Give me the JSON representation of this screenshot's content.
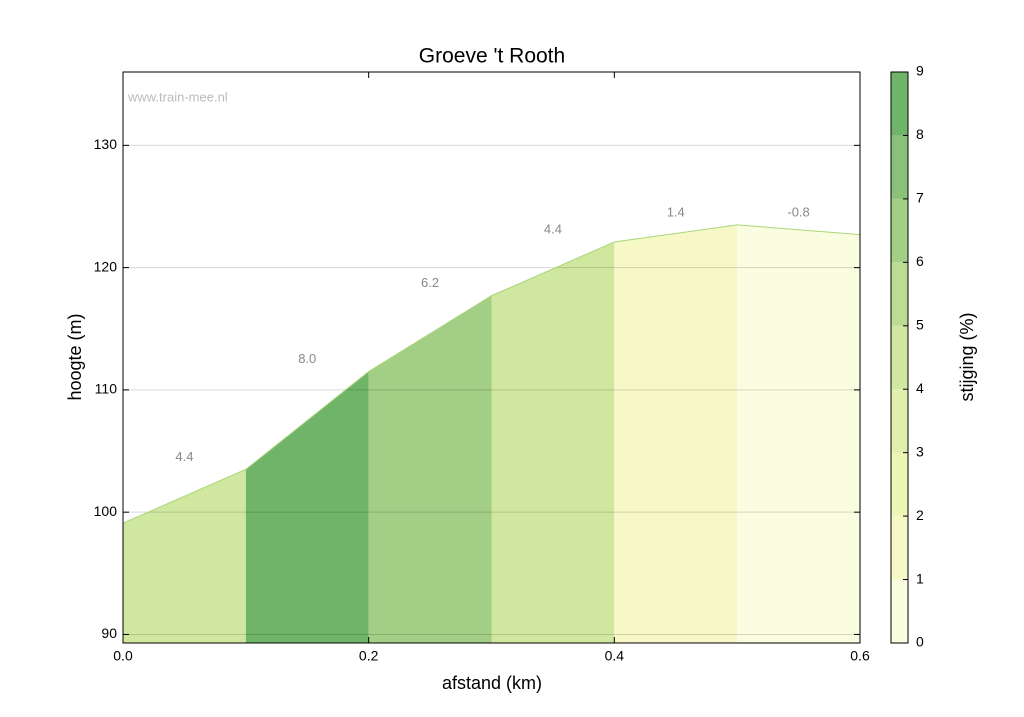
{
  "chart_data": {
    "type": "elevation-profile",
    "title": "Groeve 't Rooth",
    "watermark": "www.train-mee.nl",
    "x_label": "afstand (km)",
    "y_label": "hoogte (m)",
    "x": [
      0,
      0.1,
      0.2,
      0.3,
      0.4,
      0.5,
      0.6
    ],
    "elevation": [
      99.1,
      103.5,
      111.5,
      117.7,
      122.1,
      123.5,
      122.7
    ],
    "slopes": [
      4.4,
      8.0,
      6.2,
      4.4,
      1.4,
      -0.8
    ],
    "slope_labels": [
      "4.4",
      "8.0",
      "6.2",
      "4.4",
      "1.4",
      "-0.8"
    ],
    "xlim": [
      0,
      0.6
    ],
    "xticks": [
      {
        "value": 0,
        "label": "0.0"
      },
      0.2,
      0.4,
      0.6
    ],
    "ylim": [
      89.3,
      136
    ],
    "yticks": [
      90,
      100,
      110,
      120,
      130
    ],
    "grid": true,
    "colorbar": {
      "label": "stijging (%)",
      "lim": [
        0,
        9
      ],
      "ticks": [
        0,
        1,
        2,
        3,
        4,
        5,
        6,
        7,
        8,
        9
      ],
      "colors": [
        "#fbfde0",
        "#f6f9c6",
        "#eef6b6",
        "#e0f0aa",
        "#d0e7a0",
        "#bbdc92",
        "#a3ce85",
        "#8ac179",
        "#70b46a"
      ]
    }
  }
}
